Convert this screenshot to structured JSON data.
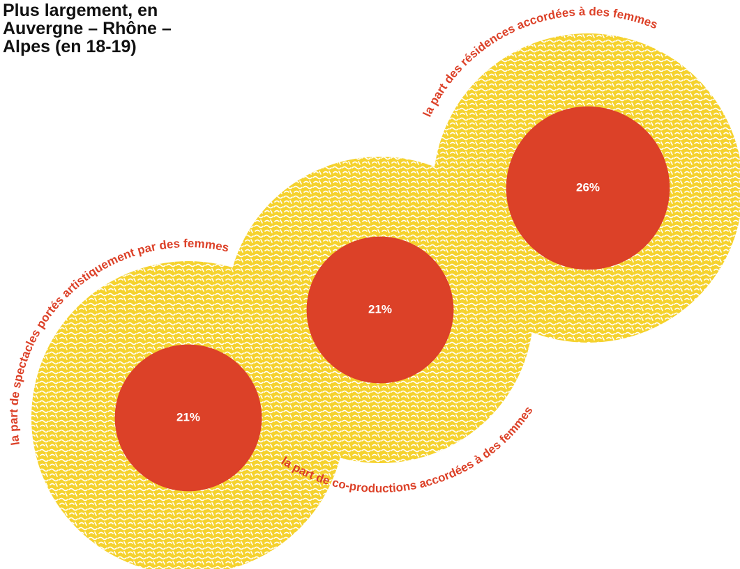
{
  "chart_data": {
    "type": "bubble",
    "title": "Plus largement, en Auvergne – Rhône – Alpes (en 18-19)",
    "categories": [
      "la part de spectacles portés artistiquement par des femmes",
      "la part de co-productions accordées à des femmes",
      "la part des résidences accordées à des femmes"
    ],
    "values": [
      21,
      21,
      26
    ],
    "value_labels": [
      "21%",
      "21%",
      "26%"
    ],
    "color": "#dc4128",
    "background_color": "#f5d22e"
  }
}
